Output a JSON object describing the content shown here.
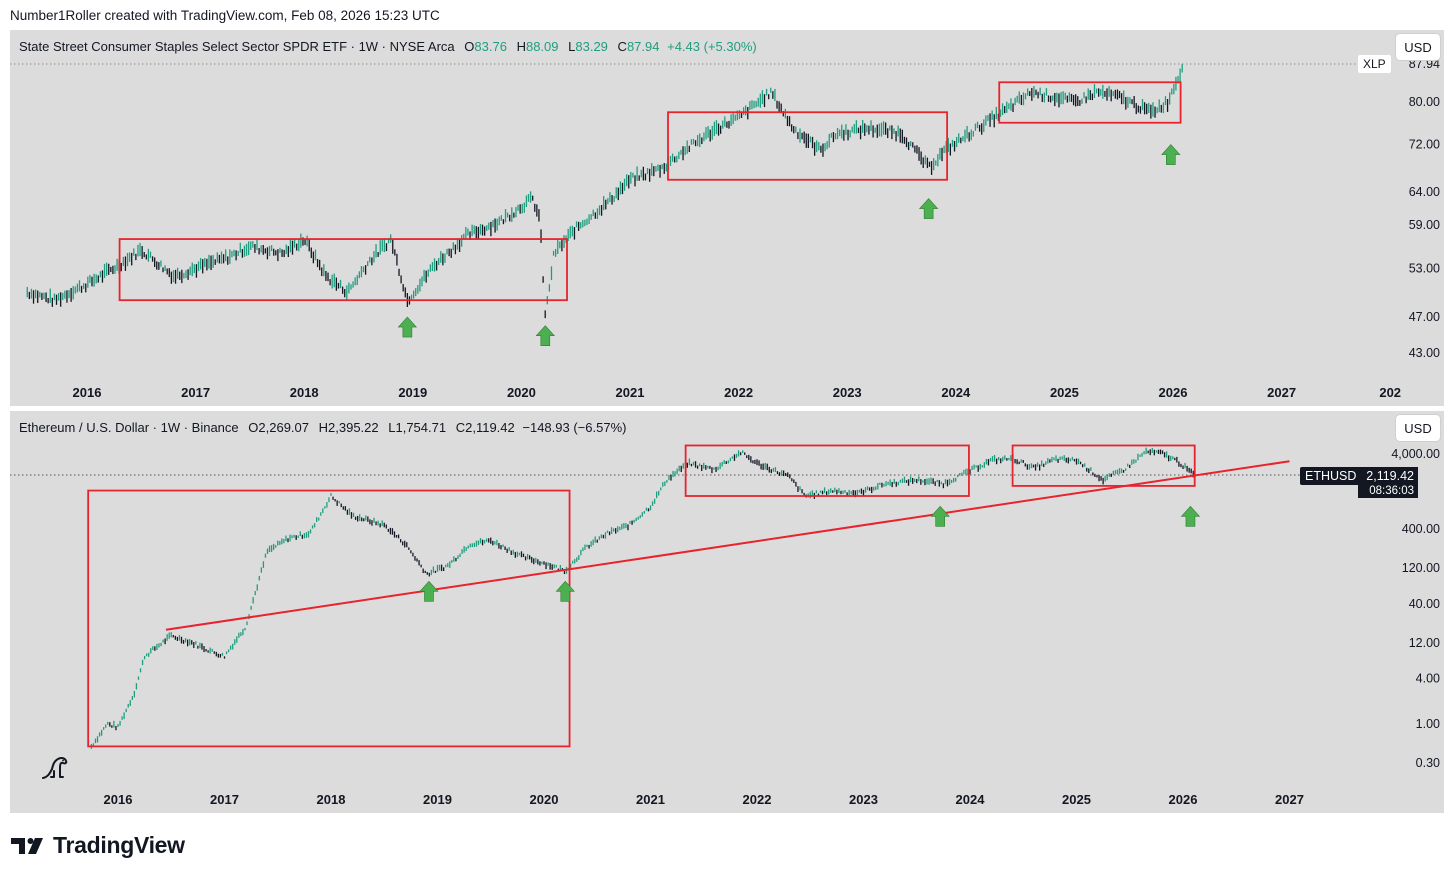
{
  "header": {
    "credit": "Number1Roller created with TradingView.com, Feb 08, 2026 15:23 UTC"
  },
  "footer": {
    "brand": "TradingView"
  },
  "panel1": {
    "title": "State Street Consumer Staples Select Sector SPDR ETF · 1W · NYSE Arca",
    "o_label": "O",
    "o": "83.76",
    "h_label": "H",
    "h": "88.09",
    "l_label": "L",
    "l": "83.29",
    "c_label": "C",
    "c": "87.94",
    "change": "+4.43 (+5.30%)",
    "currency": "USD",
    "symbol_tag": "XLP",
    "last_price_partial": "87.94"
  },
  "panel2": {
    "title": "Ethereum / U.S. Dollar · 1W · Binance",
    "o_label": "O",
    "o": "2,269.07",
    "h_label": "H",
    "h": "2,395.22",
    "l_label": "L",
    "l": "1,754.71",
    "c_label": "C",
    "c": "2,119.42",
    "change": "−148.93 (−6.57%)",
    "currency": "USD",
    "symbol_tag": "ETHUSD",
    "last_price": "2,119.42",
    "countdown": "08:36:03"
  },
  "colors": {
    "up": "#1f9e7f",
    "down": "#131722",
    "box": "#e8232e",
    "arrow": "#4caf50",
    "panel_bg": "#dcdcdc"
  },
  "chart_data": [
    {
      "type": "line",
      "title": "State Street Consumer Staples Select Sector SPDR ETF · 1W · NYSE Arca",
      "scale": "log",
      "x": [
        2015.45,
        2015.7,
        2016.0,
        2016.3,
        2016.5,
        2016.8,
        2017.0,
        2017.3,
        2017.5,
        2017.8,
        2018.0,
        2018.2,
        2018.4,
        2018.6,
        2018.8,
        2018.95,
        2019.2,
        2019.5,
        2019.8,
        2020.1,
        2020.17,
        2020.22,
        2020.3,
        2020.5,
        2020.8,
        2021.0,
        2021.3,
        2021.5,
        2021.8,
        2022.0,
        2022.3,
        2022.5,
        2022.75,
        2022.9,
        2023.2,
        2023.5,
        2023.75,
        2023.9,
        2024.2,
        2024.5,
        2024.7,
        2024.9,
        2025.1,
        2025.3,
        2025.5,
        2025.8,
        2025.95,
        2026.1
      ],
      "values": [
        50,
        49,
        51,
        53.5,
        55.5,
        52,
        53,
        54.5,
        56,
        55,
        57,
        52,
        50,
        54,
        57,
        49,
        53.5,
        57.5,
        59.5,
        63,
        60,
        47,
        55,
        58.5,
        62.5,
        66,
        68,
        71,
        75,
        77,
        82,
        75,
        71,
        74,
        75,
        74,
        68,
        71,
        75,
        79,
        82,
        81,
        80,
        82,
        81,
        78,
        80,
        87.94
      ],
      "y_ticks": [
        43,
        47,
        53,
        59,
        64,
        72,
        80
      ],
      "y_tick_labels": [
        "43.00",
        "47.00",
        "53.00",
        "59.00",
        "64.00",
        "72.00",
        "80.00"
      ],
      "x_tick_labels": [
        "2016",
        "2017",
        "2018",
        "2019",
        "2020",
        "2021",
        "2022",
        "2023",
        "2024",
        "2025",
        "2026",
        "2027",
        "202"
      ],
      "boxes": [
        {
          "x0": 2016.3,
          "x1": 2020.42,
          "y0": 49,
          "y1": 57
        },
        {
          "x0": 2021.35,
          "x1": 2023.92,
          "y0": 66,
          "y1": 78
        },
        {
          "x0": 2024.4,
          "x1": 2026.07,
          "y0": 76,
          "y1": 84
        }
      ],
      "arrows": [
        {
          "x": 2018.95,
          "y": 47
        },
        {
          "x": 2020.22,
          "y": 46
        },
        {
          "x": 2023.75,
          "y": 63
        },
        {
          "x": 2025.98,
          "y": 72
        }
      ]
    },
    {
      "type": "line",
      "title": "Ethereum / U.S. Dollar · 1W · Binance",
      "scale": "log",
      "x": [
        2015.75,
        2015.9,
        2016.0,
        2016.15,
        2016.25,
        2016.5,
        2016.7,
        2016.9,
        2017.0,
        2017.2,
        2017.4,
        2017.6,
        2017.8,
        2018.0,
        2018.2,
        2018.5,
        2018.7,
        2018.9,
        2019.1,
        2019.3,
        2019.5,
        2019.8,
        2020.0,
        2020.2,
        2020.4,
        2020.6,
        2020.8,
        2021.0,
        2021.15,
        2021.35,
        2021.6,
        2021.85,
        2022.0,
        2022.3,
        2022.45,
        2022.7,
        2022.95,
        2023.2,
        2023.5,
        2023.75,
        2023.95,
        2024.2,
        2024.4,
        2024.6,
        2024.8,
        2025.0,
        2025.25,
        2025.45,
        2025.65,
        2025.8,
        2025.95,
        2026.1
      ],
      "values": [
        0.5,
        1.0,
        0.9,
        2.5,
        8,
        15,
        12,
        9,
        8,
        20,
        200,
        300,
        350,
        1100,
        600,
        450,
        250,
        100,
        130,
        250,
        280,
        170,
        140,
        110,
        230,
        350,
        450,
        800,
        1800,
        3000,
        2500,
        4200,
        3000,
        2000,
        1100,
        1300,
        1200,
        1600,
        1800,
        1600,
        2200,
        3300,
        3500,
        2600,
        3400,
        3300,
        1800,
        2500,
        4300,
        4100,
        3200,
        2119.42
      ],
      "y_ticks": [
        0.3,
        1,
        4,
        12,
        40,
        120,
        400,
        4000
      ],
      "y_tick_labels": [
        "0.30",
        "1.00",
        "4.00",
        "12.00",
        "40.00",
        "120.00",
        "400.00",
        "4,000.00"
      ],
      "x_tick_labels": [
        "2016",
        "2017",
        "2018",
        "2019",
        "2020",
        "2021",
        "2022",
        "2023",
        "2024",
        "2025",
        "2026",
        "2027"
      ],
      "boxes": [
        {
          "x0": 2015.72,
          "x1": 2020.24,
          "y0": 0.5,
          "y1": 1300
        },
        {
          "x0": 2021.33,
          "x1": 2023.99,
          "y0": 1100,
          "y1": 5200
        },
        {
          "x0": 2024.4,
          "x1": 2026.11,
          "y0": 1500,
          "y1": 5200
        }
      ],
      "trendline": {
        "x0": 2016.45,
        "y0": 18,
        "x1": 2027.0,
        "y1": 3200
      },
      "arrows": [
        {
          "x": 2018.92,
          "y": 80
        },
        {
          "x": 2020.2,
          "y": 80
        },
        {
          "x": 2023.72,
          "y": 800
        },
        {
          "x": 2026.07,
          "y": 800
        }
      ]
    }
  ]
}
